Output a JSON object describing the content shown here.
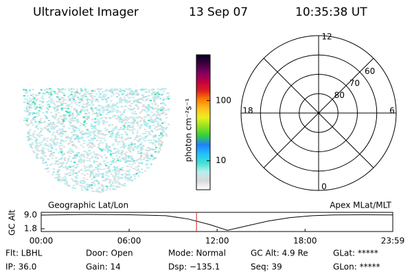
{
  "header": {
    "title": "Ultraviolet Imager",
    "date": "13 Sep 07",
    "time": "10:35:38 UT"
  },
  "colorbar": {
    "label": "photon cm⁻²s⁻¹",
    "log": true,
    "ylim": [
      3.3,
      575
    ],
    "yticks": [
      10,
      100
    ],
    "colors": [
      "#ffffff",
      "#d8d8d8",
      "#b8eef0",
      "#40e0d0",
      "#20c0ff",
      "#2080ff",
      "#30d040",
      "#90e020",
      "#e8f020",
      "#ffc020",
      "#ff8000",
      "#e02020",
      "#c00040",
      "#800060",
      "#400040",
      "#000020"
    ]
  },
  "polar": {
    "rlim": [
      90,
      50
    ],
    "rticks": [
      80,
      70,
      60
    ],
    "mlt_labels": [
      "12",
      "18",
      "6",
      "0"
    ]
  },
  "altitude": {
    "title_left": "Geographic Lat/Lon",
    "title_right": "Apex MLat/MLT",
    "ylabel": "GC Alt",
    "ylim": [
      0.36,
      10.44
    ],
    "yticks": [
      {
        "value": 9,
        "label": "9.0"
      },
      1.8
    ],
    "xlim": [
      0,
      23.983
    ],
    "xticks": [
      {
        "value": 0,
        "label": "00:00"
      },
      {
        "value": 6,
        "label": "06:00"
      },
      {
        "value": 12,
        "label": "12:00"
      },
      {
        "value": 18,
        "label": "18:00"
      },
      {
        "value": 23.983,
        "label": "23:59"
      }
    ],
    "x": [
      0,
      3,
      6,
      8.5,
      10,
      11.5,
      12.7,
      14,
      15.5,
      17,
      18.5,
      20,
      22,
      23.983
    ],
    "values": [
      9.0,
      9.3,
      9.2,
      8.7,
      7.0,
      4.0,
      1.0,
      3.3,
      5.9,
      7.7,
      8.7,
      9.1,
      9.2,
      9.1
    ],
    "color": "#000000",
    "current_time": 10.594,
    "current_color": "#d02020"
  },
  "footer": {
    "rows": [
      [
        "Flt: LBHL",
        "Door: Open",
        "Mode: Normal",
        "GC Alt: 4.9 Re",
        "GLat: *****"
      ],
      [
        "IP: 36.0",
        "Gain: 14",
        "Dsp: −135.1",
        "Seq: 39",
        "GLon: *****"
      ]
    ]
  }
}
